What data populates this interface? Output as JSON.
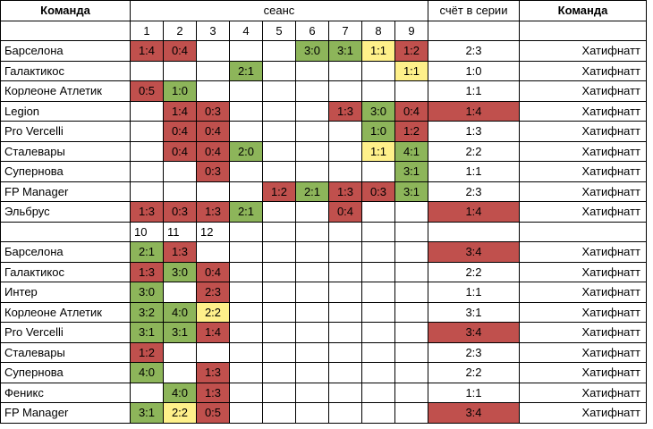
{
  "header": {
    "team_left": "Команда",
    "session": "сеанс",
    "series_score": "счёт в серии",
    "team_right": "Команда"
  },
  "part1": {
    "sessions": [
      "1",
      "2",
      "3",
      "4",
      "5",
      "6",
      "7",
      "8",
      "9"
    ],
    "rows": [
      {
        "team": "Барселона",
        "cells": [
          {
            "v": "1:4",
            "c": "r"
          },
          {
            "v": "0:4",
            "c": "r"
          },
          null,
          null,
          null,
          {
            "v": "3:0",
            "c": "g"
          },
          {
            "v": "3:1",
            "c": "g"
          },
          {
            "v": "1:1",
            "c": "y"
          },
          {
            "v": "1:2",
            "c": "r"
          }
        ],
        "series": "2:3",
        "series_color": "",
        "opponent": "Хатифнатт"
      },
      {
        "team": "Галактикос",
        "cells": [
          null,
          null,
          null,
          {
            "v": "2:1",
            "c": "g"
          },
          null,
          null,
          null,
          null,
          {
            "v": "1:1",
            "c": "y"
          }
        ],
        "series": "1:0",
        "series_color": "",
        "opponent": "Хатифнатт"
      },
      {
        "team": "Корлеоне Атлетик",
        "cells": [
          {
            "v": "0:5",
            "c": "r"
          },
          {
            "v": "1:0",
            "c": "g"
          },
          null,
          null,
          null,
          null,
          null,
          null,
          null
        ],
        "series": "1:1",
        "series_color": "",
        "opponent": "Хатифнатт"
      },
      {
        "team": "Legion",
        "cells": [
          null,
          {
            "v": "1:4",
            "c": "r"
          },
          {
            "v": "0:3",
            "c": "r"
          },
          null,
          null,
          null,
          {
            "v": "1:3",
            "c": "r"
          },
          {
            "v": "3:0",
            "c": "g"
          },
          {
            "v": "0:4",
            "c": "r"
          }
        ],
        "series": "1:4",
        "series_color": "r",
        "opponent": "Хатифнатт"
      },
      {
        "team": "Pro Vercelli",
        "cells": [
          null,
          {
            "v": "0:4",
            "c": "r"
          },
          {
            "v": "0:4",
            "c": "r"
          },
          null,
          null,
          null,
          null,
          {
            "v": "1:0",
            "c": "g"
          },
          {
            "v": "1:2",
            "c": "r"
          }
        ],
        "series": "1:3",
        "series_color": "",
        "opponent": "Хатифнатт"
      },
      {
        "team": "Сталевары",
        "cells": [
          null,
          {
            "v": "0:4",
            "c": "r"
          },
          {
            "v": "0:4",
            "c": "r"
          },
          {
            "v": "2:0",
            "c": "g"
          },
          null,
          null,
          null,
          {
            "v": "1:1",
            "c": "y"
          },
          {
            "v": "4:1",
            "c": "g"
          }
        ],
        "series": "2:2",
        "series_color": "",
        "opponent": "Хатифнатт"
      },
      {
        "team": "Супернова",
        "cells": [
          null,
          null,
          {
            "v": "0:3",
            "c": "r"
          },
          null,
          null,
          null,
          null,
          null,
          {
            "v": "3:1",
            "c": "g"
          }
        ],
        "series": "1:1",
        "series_color": "",
        "opponent": "Хатифнатт"
      },
      {
        "team": "FP Manager",
        "cells": [
          null,
          null,
          null,
          null,
          {
            "v": "1:2",
            "c": "r"
          },
          {
            "v": "2:1",
            "c": "g"
          },
          {
            "v": "1:3",
            "c": "r"
          },
          {
            "v": "0:3",
            "c": "r"
          },
          {
            "v": "3:1",
            "c": "g"
          }
        ],
        "series": "2:3",
        "series_color": "",
        "opponent": "Хатифнатт"
      },
      {
        "team": "Эльбрус",
        "cells": [
          {
            "v": "1:3",
            "c": "r"
          },
          {
            "v": "0:3",
            "c": "r"
          },
          {
            "v": "1:3",
            "c": "r"
          },
          {
            "v": "2:1",
            "c": "g"
          },
          null,
          null,
          {
            "v": "0:4",
            "c": "r"
          },
          null,
          null
        ],
        "series": "1:4",
        "series_color": "r",
        "opponent": "Хатифнатт"
      }
    ]
  },
  "part2": {
    "sessions": [
      "10",
      "11",
      "12"
    ],
    "rows": [
      {
        "team": "Барселона",
        "cells": [
          {
            "v": "2:1",
            "c": "g"
          },
          {
            "v": "1:3",
            "c": "r"
          },
          null
        ],
        "series": "3:4",
        "series_color": "r",
        "opponent": "Хатифнатт"
      },
      {
        "team": "Галактикос",
        "cells": [
          {
            "v": "1:3",
            "c": "r"
          },
          {
            "v": "3:0",
            "c": "g"
          },
          {
            "v": "0:4",
            "c": "r"
          }
        ],
        "series": "2:2",
        "series_color": "",
        "opponent": "Хатифнатт"
      },
      {
        "team": "Интер",
        "cells": [
          {
            "v": "3:0",
            "c": "g"
          },
          null,
          {
            "v": "2:3",
            "c": "r"
          }
        ],
        "series": "1:1",
        "series_color": "",
        "opponent": "Хатифнатт"
      },
      {
        "team": "Корлеоне Атлетик",
        "cells": [
          {
            "v": "3:2",
            "c": "g"
          },
          {
            "v": "4:0",
            "c": "g"
          },
          {
            "v": "2:2",
            "c": "y"
          }
        ],
        "series": "3:1",
        "series_color": "",
        "opponent": "Хатифнатт"
      },
      {
        "team": "Pro Vercelli",
        "cells": [
          {
            "v": "3:1",
            "c": "g"
          },
          {
            "v": "3:1",
            "c": "g"
          },
          {
            "v": "1:4",
            "c": "r"
          }
        ],
        "series": "3:4",
        "series_color": "r",
        "opponent": "Хатифнатт"
      },
      {
        "team": "Сталевары",
        "cells": [
          {
            "v": "1:2",
            "c": "r"
          },
          null,
          null
        ],
        "series": "2:3",
        "series_color": "",
        "opponent": "Хатифнатт"
      },
      {
        "team": "Супернова",
        "cells": [
          {
            "v": "4:0",
            "c": "g"
          },
          null,
          {
            "v": "1:3",
            "c": "r"
          }
        ],
        "series": "2:2",
        "series_color": "",
        "opponent": "Хатифнатт"
      },
      {
        "team": "Феникс",
        "cells": [
          null,
          {
            "v": "4:0",
            "c": "g"
          },
          {
            "v": "1:3",
            "c": "r"
          }
        ],
        "series": "1:1",
        "series_color": "",
        "opponent": "Хатифнатт"
      },
      {
        "team": "FP Manager",
        "cells": [
          {
            "v": "3:1",
            "c": "g"
          },
          {
            "v": "2:2",
            "c": "y"
          },
          {
            "v": "0:5",
            "c": "r"
          }
        ],
        "series": "3:4",
        "series_color": "r",
        "opponent": "Хатифнатт"
      }
    ]
  },
  "colors": {
    "loss": "#c0504d",
    "win": "#8db55a",
    "draw": "#fef08a"
  }
}
